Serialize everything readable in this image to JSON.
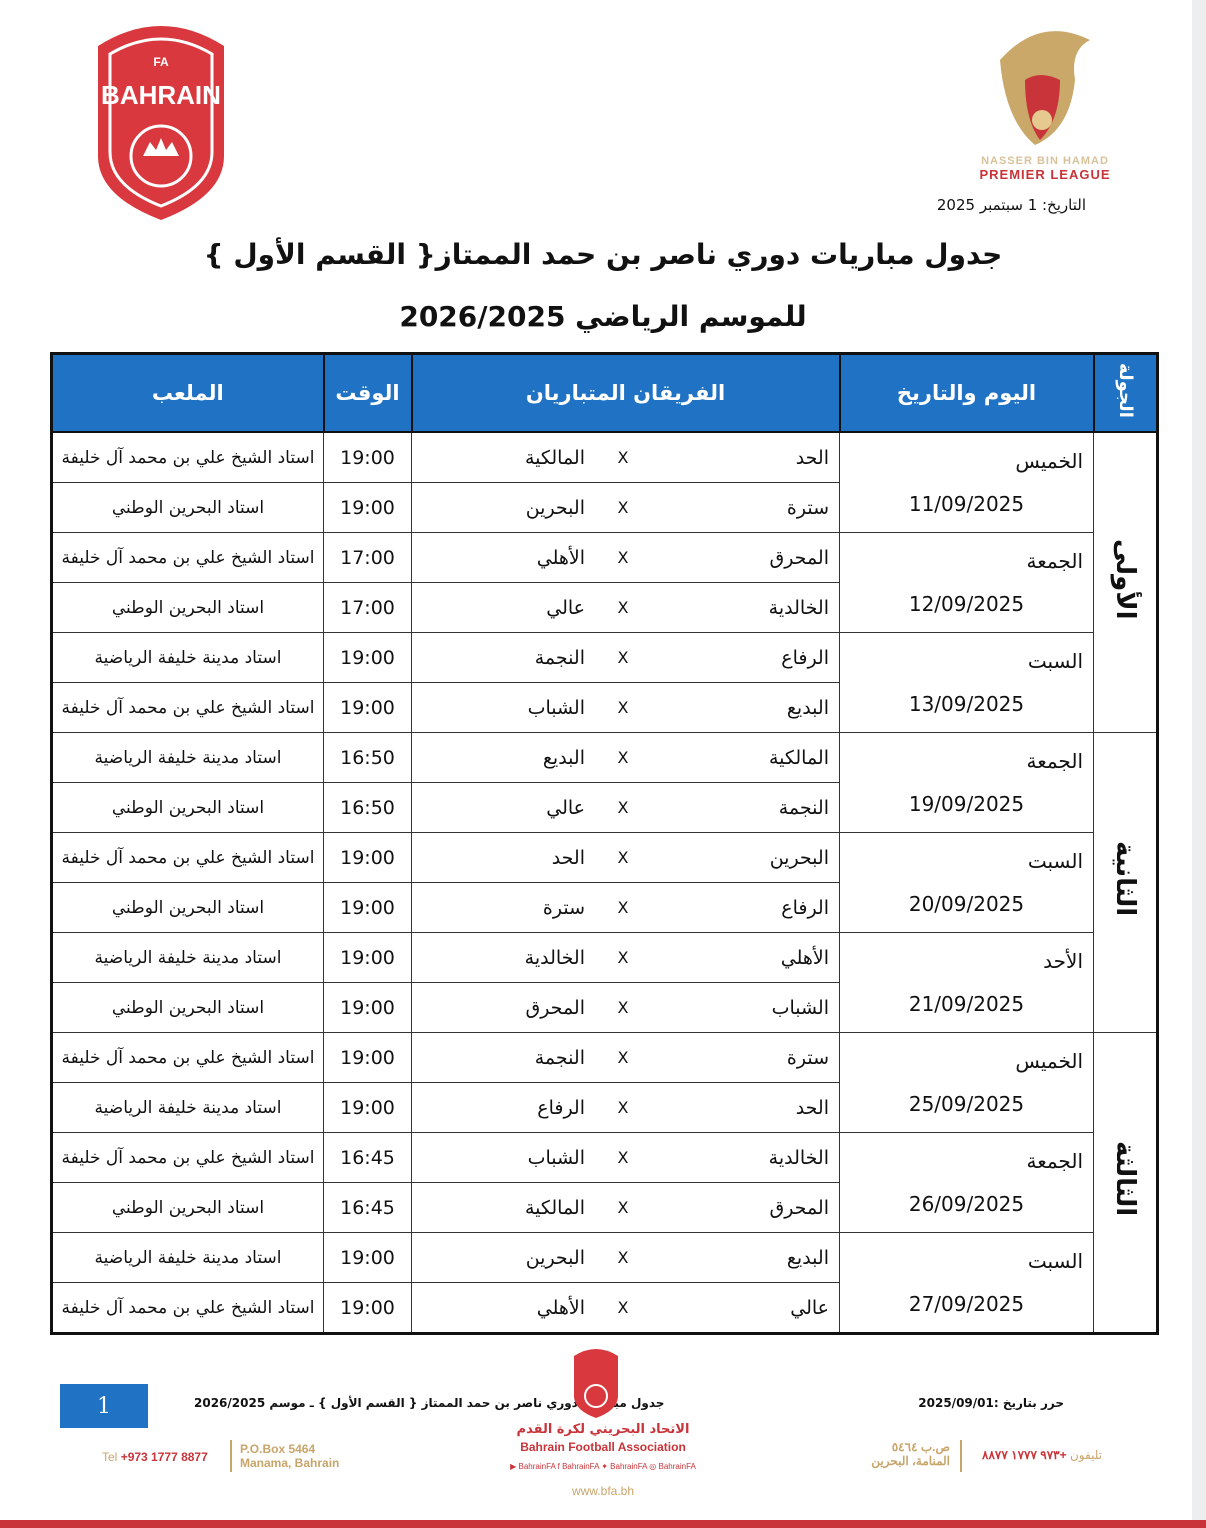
{
  "header": {
    "left_logo_text": "FA BAHRAIN",
    "league_logo": {
      "line1": "NASSER BIN HAMAD",
      "line2": "PREMIER LEAGUE"
    },
    "date": "التاريخ: 1 سبتمبر 2025",
    "title_line1": "جدول مباريات دوري ناصر بن حمد الممتاز{ القسم الأول }",
    "title_line2": "للموسم الرياضي 2026/2025"
  },
  "colors": {
    "header_blue": "#1f72c4",
    "brand_red": "#c8343a",
    "gold": "#c8a56a"
  },
  "table": {
    "columns": {
      "round": "الجولة",
      "day": "اليوم والتاريخ",
      "teams": "الفريقان المتباريان",
      "time": "الوقت",
      "stadium": "الملعب"
    },
    "separator": "X",
    "rounds": [
      {
        "name": "الأولى",
        "days": [
          {
            "day": "الخميس",
            "date": "11/09/2025",
            "matches": [
              {
                "home": "الحد",
                "away": "المالكية",
                "time": "19:00",
                "stadium": "استاد الشيخ علي بن محمد آل خليفة"
              },
              {
                "home": "سترة",
                "away": "البحرين",
                "time": "19:00",
                "stadium": "استاد البحرين الوطني"
              }
            ]
          },
          {
            "day": "الجمعة",
            "date": "12/09/2025",
            "matches": [
              {
                "home": "المحرق",
                "away": "الأهلي",
                "time": "17:00",
                "stadium": "استاد الشيخ علي بن محمد آل خليفة"
              },
              {
                "home": "الخالدية",
                "away": "عالي",
                "time": "17:00",
                "stadium": "استاد البحرين الوطني"
              }
            ]
          },
          {
            "day": "السبت",
            "date": "13/09/2025",
            "matches": [
              {
                "home": "الرفاع",
                "away": "النجمة",
                "time": "19:00",
                "stadium": "استاد مدينة خليفة الرياضية"
              },
              {
                "home": "البديع",
                "away": "الشباب",
                "time": "19:00",
                "stadium": "استاد الشيخ علي بن محمد آل خليفة"
              }
            ]
          }
        ]
      },
      {
        "name": "الثانية",
        "days": [
          {
            "day": "الجمعة",
            "date": "19/09/2025",
            "matches": [
              {
                "home": "المالكية",
                "away": "البديع",
                "time": "16:50",
                "stadium": "استاد مدينة خليفة الرياضية"
              },
              {
                "home": "النجمة",
                "away": "عالي",
                "time": "16:50",
                "stadium": "استاد البحرين الوطني"
              }
            ]
          },
          {
            "day": "السبت",
            "date": "20/09/2025",
            "matches": [
              {
                "home": "البحرين",
                "away": "الحد",
                "time": "19:00",
                "stadium": "استاد الشيخ علي بن محمد آل خليفة"
              },
              {
                "home": "الرفاع",
                "away": "سترة",
                "time": "19:00",
                "stadium": "استاد البحرين الوطني"
              }
            ]
          },
          {
            "day": "الأحد",
            "date": "21/09/2025",
            "matches": [
              {
                "home": "الأهلي",
                "away": "الخالدية",
                "time": "19:00",
                "stadium": "استاد مدينة خليفة الرياضية"
              },
              {
                "home": "الشباب",
                "away": "المحرق",
                "time": "19:00",
                "stadium": "استاد البحرين الوطني"
              }
            ]
          }
        ]
      },
      {
        "name": "الثالثة",
        "days": [
          {
            "day": "الخميس",
            "date": "25/09/2025",
            "matches": [
              {
                "home": "سترة",
                "away": "النجمة",
                "time": "19:00",
                "stadium": "استاد الشيخ علي بن محمد آل خليفة"
              },
              {
                "home": "الحد",
                "away": "الرفاع",
                "time": "19:00",
                "stadium": "استاد مدينة خليفة الرياضية"
              }
            ]
          },
          {
            "day": "الجمعة",
            "date": "26/09/2025",
            "matches": [
              {
                "home": "الخالدية",
                "away": "الشباب",
                "time": "16:45",
                "stadium": "استاد الشيخ علي بن محمد آل خليفة"
              },
              {
                "home": "المحرق",
                "away": "المالكية",
                "time": "16:45",
                "stadium": "استاد البحرين الوطني"
              }
            ]
          },
          {
            "day": "السبت",
            "date": "27/09/2025",
            "matches": [
              {
                "home": "البديع",
                "away": "البحرين",
                "time": "19:00",
                "stadium": "استاد مدينة خليفة الرياضية"
              },
              {
                "home": "عالي",
                "away": "الأهلي",
                "time": "19:00",
                "stadium": "استاد الشيخ علي بن محمد آل خليفة"
              }
            ]
          }
        ]
      }
    ]
  },
  "footer": {
    "page_number": "1",
    "doc_title": "جدول مباريات دوري ناصر بن حمد الممتاز { القسم الأول } ـ موسم 2026/2025",
    "edited_on": "حرر بتاريخ :2025/09/01",
    "org_ar": "الاتحاد البحريني لكرة القدم",
    "org_en": "Bahrain Football Association",
    "social": "▶ BahrainFA   f BahrainFA   ✦ BahrainFA   ◎ BahrainFA",
    "website": "www.bfa.bh",
    "tel_label": "Tel",
    "tel": "+973 1777 8877",
    "pobox": "P.O.Box 5464",
    "city": "Manama, Bahrain",
    "tel_ar_label": "تليفون",
    "tel_ar": "+٩٧٣ ١٧٧٧ ٨٨٧٧",
    "pobox_ar": "ص.ب ٥٤٦٤",
    "city_ar": "المنامة، البحرين"
  }
}
